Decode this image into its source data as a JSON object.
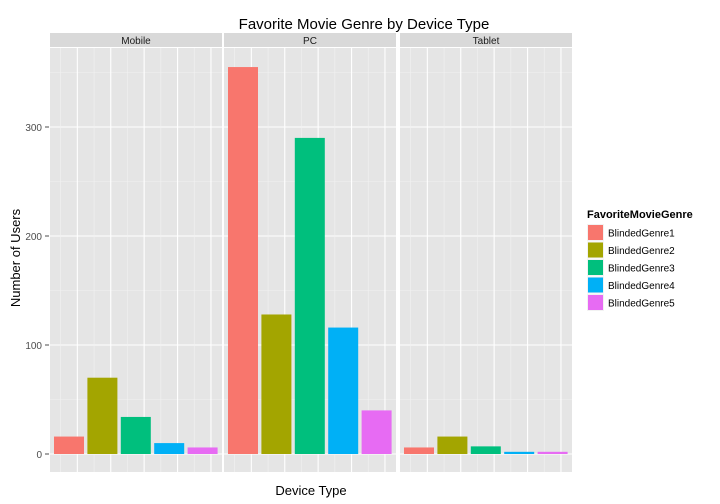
{
  "chart_data": {
    "type": "bar",
    "title": "Favorite Movie Genre by Device Type",
    "xlabel": "Device Type",
    "ylabel": "Number of Users",
    "ylim": [
      -20,
      370
    ],
    "yticks": [
      0,
      100,
      200,
      300
    ],
    "grid": true,
    "legend_position": "right",
    "legend_title": "FavoriteMovieGenre",
    "panels": [
      "Mobile",
      "PC",
      "Tablet"
    ],
    "series": [
      {
        "name": "BlindedGenre1",
        "color": "#F8766D",
        "values": [
          16,
          355,
          6
        ]
      },
      {
        "name": "BlindedGenre2",
        "color": "#A3A500",
        "values": [
          70,
          128,
          16
        ]
      },
      {
        "name": "BlindedGenre3",
        "color": "#00BF7D",
        "values": [
          34,
          290,
          7
        ]
      },
      {
        "name": "BlindedGenre4",
        "color": "#00B0F6",
        "values": [
          10,
          116,
          2
        ]
      },
      {
        "name": "BlindedGenre5",
        "color": "#E76BF3",
        "values": [
          6,
          40,
          2
        ]
      }
    ]
  }
}
